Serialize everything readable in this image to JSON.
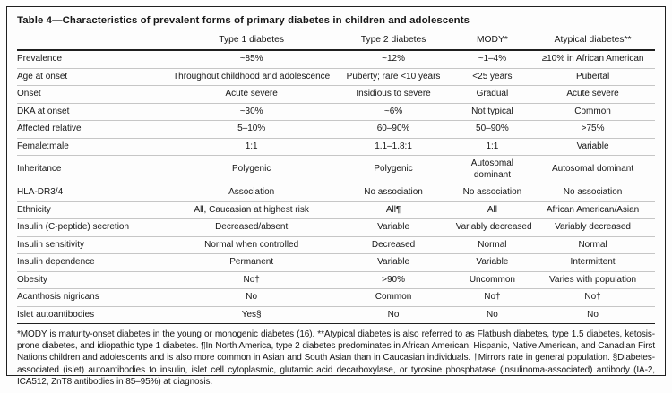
{
  "colors": {
    "ink": "#161616",
    "rule_gray": "#c6c6c6",
    "border_black": "#1f1f1f",
    "paper": "#fdfdfd"
  },
  "table": {
    "title": "Table 4—Characteristics of prevalent forms of primary diabetes in children and adolescents",
    "columns": [
      "Type 1 diabetes",
      "Type 2 diabetes",
      "MODY*",
      "Atypical diabetes**"
    ],
    "rows": [
      {
        "label": "Prevalence",
        "values": [
          "~85%",
          "~12%",
          "~1–4%",
          "≥10% in African American"
        ]
      },
      {
        "label": "Age at onset",
        "values": [
          "Throughout childhood and adolescence",
          "Puberty; rare <10 years",
          "<25 years",
          "Pubertal"
        ]
      },
      {
        "label": "Onset",
        "values": [
          "Acute severe",
          "Insidious to severe",
          "Gradual",
          "Acute severe"
        ]
      },
      {
        "label": "DKA at onset",
        "values": [
          "~30%",
          "~6%",
          "Not typical",
          "Common"
        ]
      },
      {
        "label": "Affected relative",
        "values": [
          "5–10%",
          "60–90%",
          "50–90%",
          ">75%"
        ]
      },
      {
        "label": "Female:male",
        "values": [
          "1:1",
          "1.1–1.8:1",
          "1:1",
          "Variable"
        ]
      },
      {
        "label": "Inheritance",
        "values": [
          "Polygenic",
          "Polygenic",
          "Autosomal dominant",
          "Autosomal dominant"
        ]
      },
      {
        "label": "HLA-DR3/4",
        "values": [
          "Association",
          "No association",
          "No association",
          "No association"
        ]
      },
      {
        "label": "Ethnicity",
        "values": [
          "All, Caucasian at highest risk",
          "All¶",
          "All",
          "African American/Asian"
        ]
      },
      {
        "label": "Insulin (C-peptide) secretion",
        "values": [
          "Decreased/absent",
          "Variable",
          "Variably decreased",
          "Variably decreased"
        ]
      },
      {
        "label": "Insulin sensitivity",
        "values": [
          "Normal when controlled",
          "Decreased",
          "Normal",
          "Normal"
        ]
      },
      {
        "label": "Insulin dependence",
        "values": [
          "Permanent",
          "Variable",
          "Variable",
          "Intermittent"
        ]
      },
      {
        "label": "Obesity",
        "values": [
          "No†",
          ">90%",
          "Uncommon",
          "Varies with population"
        ]
      },
      {
        "label": "Acanthosis nigricans",
        "values": [
          "No",
          "Common",
          "No†",
          "No†"
        ]
      },
      {
        "label": "Islet autoantibodies",
        "values": [
          "Yes§",
          "No",
          "No",
          "No"
        ]
      }
    ],
    "footnote": "*MODY is maturity-onset diabetes in the young or monogenic diabetes (16). **Atypical diabetes is also referred to as Flatbush diabetes, type 1.5 diabetes, ketosis-prone diabetes, and idiopathic type 1 diabetes. ¶In North America, type 2 diabetes predominates in African American, Hispanic, Native American, and Canadian First Nations children and adolescents and is also more common in Asian and South Asian than in Caucasian individuals. †Mirrors rate in general population. §Diabetes-associated (islet) autoantibodies to insulin, islet cell cytoplasmic, glutamic acid decarboxylase, or tyrosine phosphatase (insulinoma-associated) antibody (IA-2, ICA512, ZnT8 antibodies in 85–95%) at diagnosis."
  }
}
